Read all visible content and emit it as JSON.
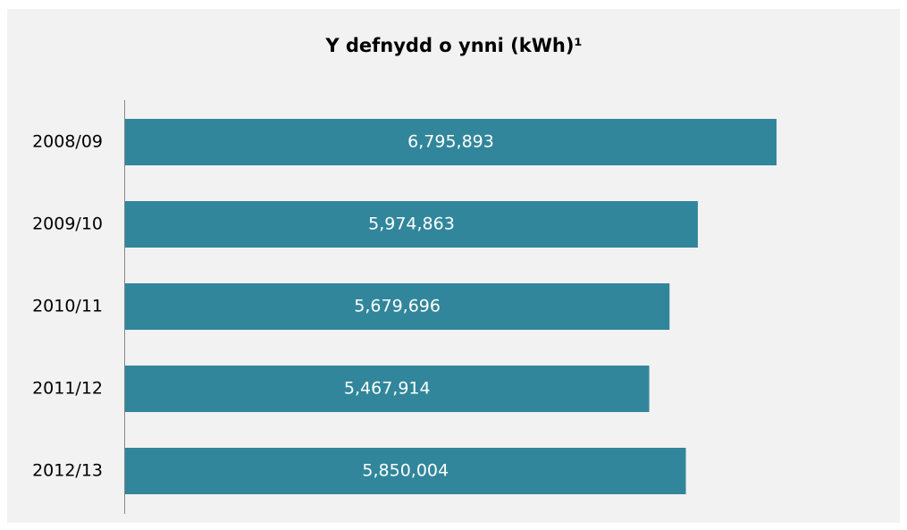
{
  "chart_data": {
    "type": "barh",
    "title": "Y defnydd o ynni (kWh)¹",
    "categories": [
      "2008/09",
      "2009/10",
      "2010/11",
      "2011/12",
      "2012/13"
    ],
    "values": [
      6795893,
      5974863,
      5679696,
      5467914,
      5850004
    ],
    "value_labels": [
      "6,795,893",
      "5,974,863",
      "5,679,696",
      "5,467,914",
      "5,850,004"
    ],
    "color": "#31869b"
  }
}
